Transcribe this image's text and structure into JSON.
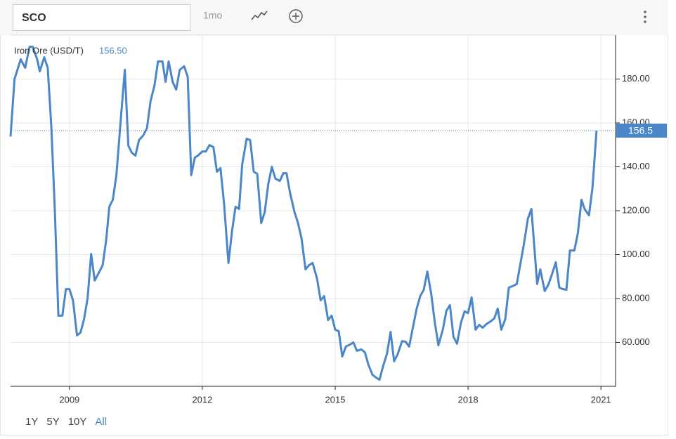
{
  "toolbar": {
    "symbol": "SCO",
    "interval": "1mo",
    "ranges": [
      "1Y",
      "5Y",
      "10Y",
      "All"
    ]
  },
  "chart_data": {
    "type": "line",
    "x": [
      2007.67,
      2007.76,
      2007.9,
      2008.0,
      2008.1,
      2008.17,
      2008.27,
      2008.33,
      2008.43,
      2008.51,
      2008.59,
      2008.67,
      2008.75,
      2008.84,
      2008.92,
      2009.0,
      2009.08,
      2009.17,
      2009.25,
      2009.33,
      2009.41,
      2009.49,
      2009.57,
      2009.67,
      2009.75,
      2009.83,
      2009.9,
      2009.98,
      2010.06,
      2010.16,
      2010.25,
      2010.33,
      2010.41,
      2010.49,
      2010.57,
      2010.67,
      2010.75,
      2010.83,
      2010.92,
      2011.0,
      2011.1,
      2011.17,
      2011.24,
      2011.33,
      2011.41,
      2011.49,
      2011.59,
      2011.67,
      2011.75,
      2011.83,
      2011.9,
      2012.0,
      2012.08,
      2012.16,
      2012.25,
      2012.33,
      2012.41,
      2012.49,
      2012.59,
      2012.67,
      2012.75,
      2012.83,
      2012.9,
      2013.0,
      2013.08,
      2013.16,
      2013.24,
      2013.33,
      2013.41,
      2013.49,
      2013.57,
      2013.65,
      2013.75,
      2013.83,
      2013.9,
      2013.98,
      2014.08,
      2014.16,
      2014.24,
      2014.33,
      2014.41,
      2014.49,
      2014.59,
      2014.67,
      2014.75,
      2014.84,
      2014.92,
      2015.0,
      2015.08,
      2015.16,
      2015.24,
      2015.33,
      2015.41,
      2015.49,
      2015.59,
      2015.67,
      2015.75,
      2015.84,
      2015.92,
      2016.0,
      2016.08,
      2016.17,
      2016.25,
      2016.33,
      2016.41,
      2016.51,
      2016.59,
      2016.67,
      2016.75,
      2016.84,
      2016.92,
      2017.0,
      2017.08,
      2017.17,
      2017.25,
      2017.33,
      2017.43,
      2017.51,
      2017.59,
      2017.67,
      2017.75,
      2017.84,
      2017.92,
      2018.0,
      2018.08,
      2018.17,
      2018.25,
      2018.33,
      2018.41,
      2018.51,
      2018.59,
      2018.67,
      2018.75,
      2018.84,
      2018.92,
      2019.0,
      2019.1,
      2019.17,
      2019.25,
      2019.35,
      2019.43,
      2019.56,
      2019.63,
      2019.73,
      2019.81,
      2019.9,
      2019.98,
      2020.06,
      2020.14,
      2020.22,
      2020.3,
      2020.4,
      2020.48,
      2020.56,
      2020.63,
      2020.73,
      2020.81,
      2020.9
    ],
    "series": [
      {
        "name": "Iron Ore (USD/T)",
        "color": "#4a86c8",
        "values": [
          153.8,
          180,
          189.0,
          185.1,
          194.7,
          194.7,
          189.0,
          183.5,
          189.9,
          185.1,
          158.6,
          120.2,
          72.2,
          72.2,
          84.3,
          84.3,
          79.2,
          63.2,
          64.5,
          70.6,
          80.2,
          100.3,
          88.2,
          92.0,
          95.2,
          106.7,
          121.8,
          125.0,
          136.2,
          161.8,
          184.2,
          149.6,
          146.4,
          145.1,
          152.2,
          154.4,
          157.6,
          169.8,
          177.1,
          188.0,
          188.0,
          178.7,
          188.0,
          178.7,
          175.2,
          184.2,
          185.8,
          181.0,
          136.2,
          144.2,
          145.1,
          147.0,
          147.0,
          149.9,
          149.0,
          137.8,
          139.4,
          123.4,
          96.2,
          110.6,
          121.8,
          120.8,
          141.0,
          152.8,
          152.2,
          137.8,
          136.8,
          114.4,
          119.5,
          132.3,
          140.0,
          134.6,
          133.6,
          137.1,
          137.1,
          128.2,
          119.5,
          114.4,
          107.4,
          93.3,
          95.2,
          96.2,
          89.1,
          79.2,
          81.1,
          70.2,
          72.2,
          65.8,
          65.1,
          53.6,
          58.1,
          59.0,
          60.0,
          56.2,
          56.8,
          55.5,
          49.8,
          45.3,
          44.0,
          43.0,
          49.1,
          54.9,
          64.8,
          51.4,
          54.6,
          60.6,
          60.3,
          58.1,
          66.4,
          75.4,
          81.1,
          84.0,
          92.3,
          81.8,
          69.0,
          58.7,
          65.8,
          74.4,
          77.0,
          62.6,
          59.4,
          69.0,
          74.1,
          73.4,
          80.5,
          65.8,
          68.0,
          66.7,
          68.3,
          69.6,
          70.9,
          75.4,
          65.8,
          70.6,
          85.0,
          85.6,
          86.6,
          94.6,
          103.5,
          116.3,
          120.8,
          86.6,
          93.3,
          83.4,
          86.2,
          91.4,
          96.5,
          85.0,
          84.3,
          84.0,
          101.9,
          101.9,
          109.9,
          125.0,
          120.8,
          117.9,
          130.7,
          156.5
        ]
      }
    ],
    "legend_value": "156.50",
    "last_value": 156.5,
    "xlim": [
      2007.67,
      2021.33
    ],
    "xticks": [
      2009,
      2012,
      2015,
      2018,
      2021
    ],
    "ylim": [
      40,
      200
    ],
    "yticks": [
      {
        "value": 60,
        "label": "60.000"
      },
      {
        "value": 80,
        "label": "80.000"
      },
      {
        "value": 100,
        "label": "100.00"
      },
      {
        "value": 120,
        "label": "120.00"
      },
      {
        "value": 140,
        "label": "140.00"
      },
      {
        "value": 160,
        "label": "160.00"
      },
      {
        "value": 180,
        "label": "180.00"
      }
    ],
    "grid": true
  }
}
